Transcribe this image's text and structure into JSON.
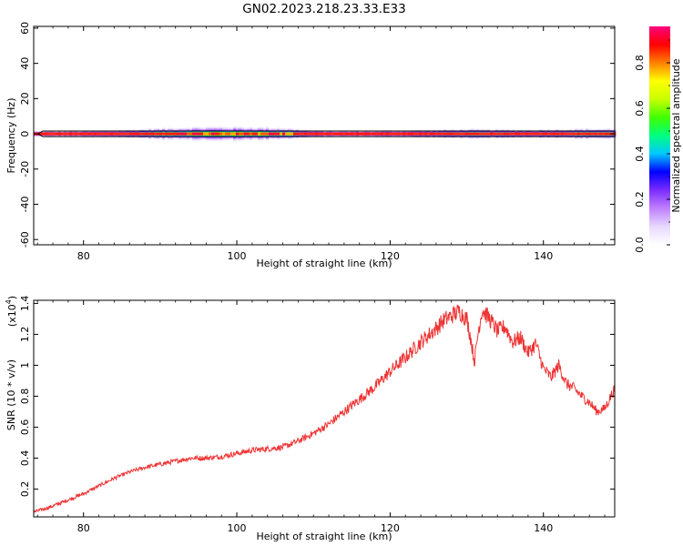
{
  "figure": {
    "title": "GN02.2023.218.23.33.E33"
  },
  "chart_data": [
    {
      "type": "heatmap",
      "title": "",
      "xlabel": "Height of straight line (km)",
      "ylabel": "Frequency (Hz)",
      "xlim": [
        73.5,
        149.3
      ],
      "ylim": [
        -63,
        61
      ],
      "xticks": [
        80,
        100,
        120,
        140
      ],
      "yticks": [
        -60,
        -40,
        -20,
        0,
        20,
        40,
        60
      ],
      "colorbar": {
        "label": "Normalized spectral amplitude",
        "range": [
          0,
          0.96
        ],
        "ticks": [
          0.0,
          0.2,
          0.4,
          0.6,
          0.8
        ],
        "colormap": [
          "#ffffff",
          "#e8d8ff",
          "#c080ff",
          "#7b2cff",
          "#0000ff",
          "#00c8ff",
          "#00ff80",
          "#40ff00",
          "#c8ff00",
          "#ffff00",
          "#ff8000",
          "#ff0000",
          "#ff0080"
        ]
      },
      "band": {
        "center_hz": 0,
        "core_value": 0.85,
        "x": [
          74,
          78,
          82,
          86,
          90,
          94,
          98,
          102,
          106,
          108,
          110,
          114,
          118,
          122,
          126,
          130,
          134,
          138,
          142,
          146,
          149
        ],
        "halfwidth_hz": [
          1.5,
          1.6,
          1.8,
          2.2,
          3.0,
          3.6,
          3.8,
          3.6,
          3.2,
          2.5,
          1.8,
          1.6,
          1.7,
          1.9,
          2.2,
          2.6,
          2.4,
          2.2,
          2.5,
          2.8,
          2.8
        ]
      },
      "grid": false
    },
    {
      "type": "line",
      "title": "",
      "xlabel": "Height of straight line (km)",
      "ylabel": "SNR (10 * v/v)",
      "y_multiplier_label": "(x10",
      "y_multiplier_exp": "4",
      "xlim": [
        73.5,
        149.3
      ],
      "ylim": [
        0.02,
        1.42
      ],
      "xticks": [
        80,
        100,
        120,
        140
      ],
      "yticks": [
        0.2,
        0.4,
        0.6,
        0.8,
        1.0,
        1.2,
        1.4
      ],
      "color": "#ee3333",
      "grid": false,
      "series": [
        {
          "x": [
            73.5,
            76,
            78,
            80,
            82,
            84,
            86,
            88,
            90,
            92,
            94,
            96,
            98,
            100,
            102,
            104,
            106,
            108,
            110,
            112,
            114,
            116,
            118,
            120,
            122,
            124,
            126,
            127,
            128,
            129,
            130,
            130.5,
            131,
            131.5,
            132,
            133,
            134,
            135,
            136,
            137,
            138,
            139,
            140,
            141,
            142,
            143,
            144,
            145,
            146,
            147,
            148,
            149.3
          ],
          "y": [
            0.05,
            0.09,
            0.13,
            0.17,
            0.22,
            0.27,
            0.31,
            0.34,
            0.36,
            0.38,
            0.4,
            0.4,
            0.41,
            0.43,
            0.45,
            0.46,
            0.47,
            0.51,
            0.56,
            0.62,
            0.7,
            0.78,
            0.86,
            0.96,
            1.05,
            1.15,
            1.24,
            1.29,
            1.32,
            1.35,
            1.3,
            1.18,
            1.02,
            1.22,
            1.36,
            1.3,
            1.22,
            1.25,
            1.15,
            1.18,
            1.08,
            1.14,
            0.98,
            0.92,
            1.0,
            0.88,
            0.85,
            0.8,
            0.76,
            0.7,
            0.72,
            0.85
          ]
        }
      ]
    }
  ]
}
